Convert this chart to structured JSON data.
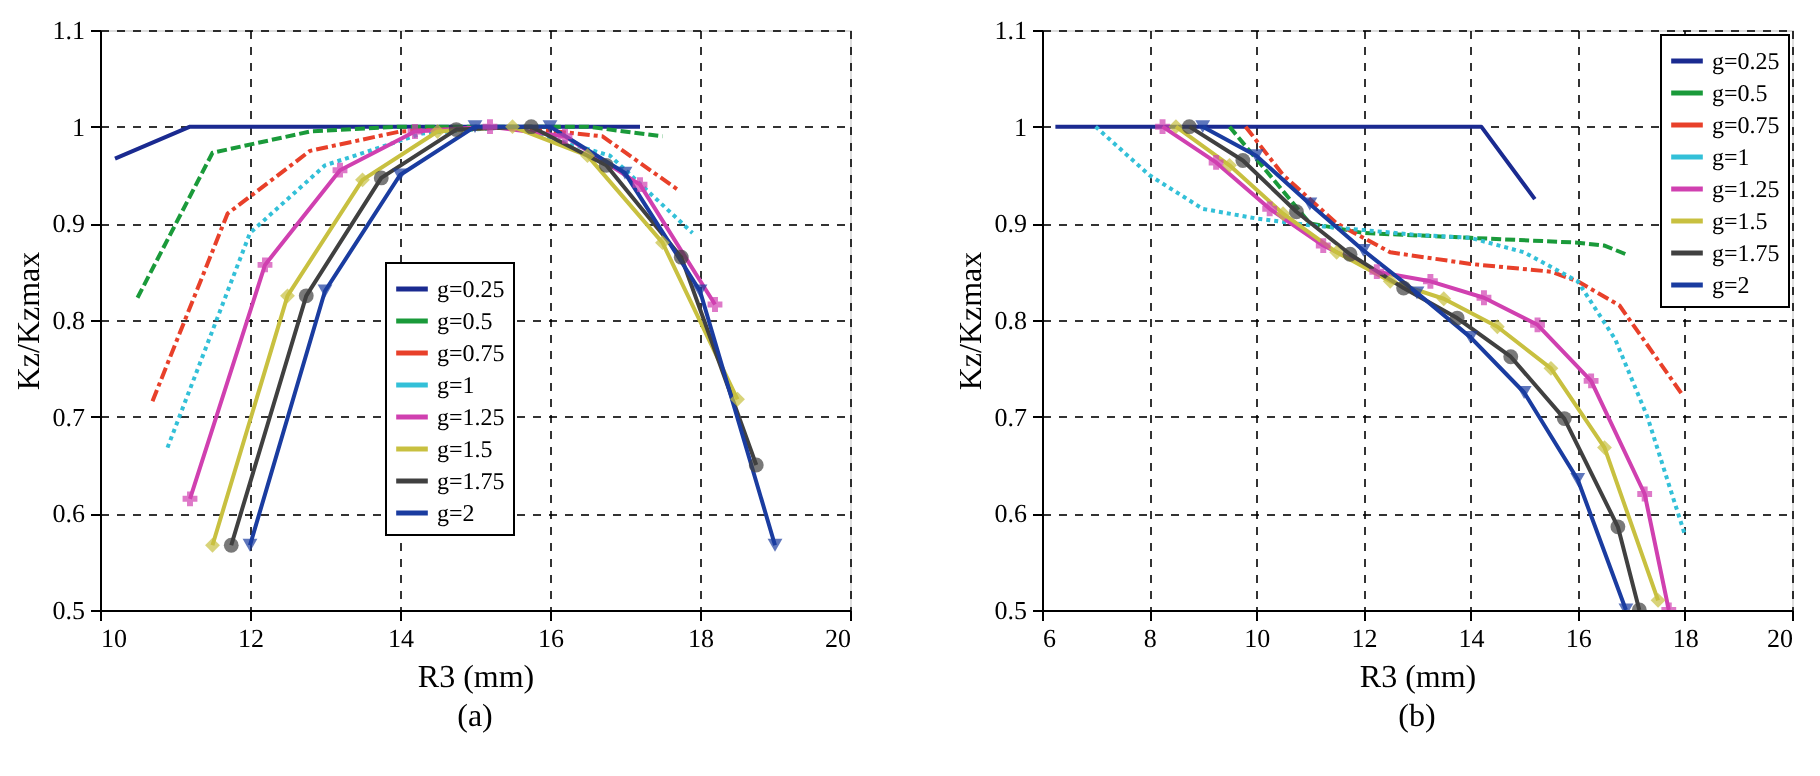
{
  "chart_data": [
    {
      "type": "line",
      "title": "(a)",
      "xlabel": "R3 (mm)",
      "ylabel": "Kz/Kzmax",
      "xlim": [
        10,
        20
      ],
      "ylim": [
        0.5,
        1.1
      ],
      "xticks": [
        10,
        12,
        14,
        16,
        18,
        20
      ],
      "yticks": [
        0.5,
        0.6,
        0.7,
        0.8,
        0.9,
        1,
        1.1
      ],
      "grid": true,
      "legend": "bottom",
      "series": [
        {
          "name": "g=0.25",
          "color": "#1a2a90",
          "line_style": "solid",
          "marker": "none",
          "x": [
            10.2,
            11.2,
            17.2
          ],
          "values": [
            0.967,
            1.0,
            1.0
          ]
        },
        {
          "name": "g=0.5",
          "color": "#1a9a3a",
          "line_style": "dashed",
          "marker": "none",
          "x": [
            10.5,
            11.5,
            12.8,
            14,
            15.5,
            16.5,
            17.5
          ],
          "values": [
            0.823,
            0.973,
            0.995,
            1.0,
            1.0,
            1.0,
            0.99
          ]
        },
        {
          "name": "g=0.75",
          "color": "#e8402a",
          "line_style": "dashdot",
          "marker": "none",
          "x": [
            10.7,
            11.7,
            12.8,
            14,
            15.5,
            16.7,
            17.7
          ],
          "values": [
            0.716,
            0.91,
            0.975,
            0.995,
            1.0,
            0.99,
            0.935
          ]
        },
        {
          "name": "g=1",
          "color": "#33c0d8",
          "line_style": "dotted",
          "marker": "none",
          "x": [
            10.9,
            12,
            13,
            14.3,
            15.5,
            16.8,
            17.9
          ],
          "values": [
            0.668,
            0.89,
            0.96,
            0.993,
            1.0,
            0.97,
            0.89
          ]
        },
        {
          "name": "g=1.25",
          "color": "#d040b0",
          "line_style": "solid",
          "marker": "cross",
          "x": [
            11.2,
            12.2,
            13.2,
            14.2,
            15.2,
            16.2,
            17.2,
            18.2
          ],
          "values": [
            0.615,
            0.857,
            0.955,
            0.995,
            1.0,
            0.99,
            0.94,
            0.816
          ]
        },
        {
          "name": "g=1.5",
          "color": "#c8c040",
          "line_style": "solid",
          "marker": "diamond",
          "x": [
            11.5,
            12.5,
            13.5,
            14.5,
            15.5,
            16.5,
            17.5,
            18.5
          ],
          "values": [
            0.567,
            0.825,
            0.945,
            0.995,
            1.0,
            0.97,
            0.88,
            0.718
          ]
        },
        {
          "name": "g=1.75",
          "color": "#404040",
          "line_style": "solid",
          "marker": "circle",
          "x": [
            11.75,
            12.75,
            13.75,
            14.75,
            15.75,
            16.75,
            17.75,
            18.75
          ],
          "values": [
            0.567,
            0.825,
            0.947,
            0.997,
            1.0,
            0.96,
            0.865,
            0.65
          ]
        },
        {
          "name": "g=2",
          "color": "#1a3ca0",
          "line_style": "solid",
          "marker": "triangle",
          "x": [
            12,
            13,
            14,
            15,
            16,
            17,
            18,
            19
          ],
          "values": [
            0.567,
            0.83,
            0.95,
            1.0,
            1.0,
            0.952,
            0.83,
            0.567
          ]
        }
      ]
    },
    {
      "type": "line",
      "title": "(b)",
      "xlabel": "R3 (mm)",
      "ylabel": "Kz/Kzmax",
      "xlim": [
        6,
        20
      ],
      "ylim": [
        0.5,
        1.1
      ],
      "xticks": [
        6,
        8,
        10,
        12,
        14,
        16,
        18,
        20
      ],
      "yticks": [
        0.5,
        0.6,
        0.7,
        0.8,
        0.9,
        1,
        1.1
      ],
      "grid": true,
      "legend": "top right",
      "series": [
        {
          "name": "g=0.25",
          "color": "#1a2a90",
          "line_style": "solid",
          "marker": "none",
          "x": [
            6.25,
            14.2,
            15.2
          ],
          "values": [
            1.0,
            1.0,
            0.925
          ]
        },
        {
          "name": "g=0.5",
          "color": "#1a9a3a",
          "line_style": "dashed",
          "marker": "none",
          "x": [
            9.5,
            10.1,
            11,
            12,
            14,
            16,
            16.5,
            16.9
          ],
          "values": [
            1.0,
            0.96,
            0.9,
            0.89,
            0.885,
            0.88,
            0.877,
            0.868
          ]
        },
        {
          "name": "g=0.75",
          "color": "#e8402a",
          "line_style": "dashdot",
          "marker": "none",
          "x": [
            9.8,
            10.5,
            11.5,
            12.5,
            14,
            15.5,
            16,
            16.78,
            17.95
          ],
          "values": [
            1.0,
            0.95,
            0.9,
            0.87,
            0.858,
            0.85,
            0.84,
            0.815,
            0.723
          ]
        },
        {
          "name": "g=1",
          "color": "#33c0d8",
          "line_style": "dotted",
          "marker": "none",
          "x": [
            7,
            8,
            9,
            10,
            11,
            12,
            13,
            14,
            15,
            16,
            16.7,
            17.3,
            17.7,
            18
          ],
          "values": [
            1.0,
            0.95,
            0.915,
            0.905,
            0.898,
            0.893,
            0.888,
            0.885,
            0.87,
            0.84,
            0.78,
            0.7,
            0.63,
            0.578
          ]
        },
        {
          "name": "g=1.25",
          "color": "#d040b0",
          "line_style": "solid",
          "marker": "cross",
          "x": [
            8.25,
            9.25,
            10.25,
            11.25,
            12.25,
            13.25,
            14.25,
            15.25,
            16.25,
            17.25,
            17.7
          ],
          "values": [
            1.0,
            0.963,
            0.915,
            0.877,
            0.85,
            0.84,
            0.823,
            0.795,
            0.737,
            0.62,
            0.5
          ]
        },
        {
          "name": "g=1.5",
          "color": "#c8c040",
          "line_style": "solid",
          "marker": "diamond",
          "x": [
            8.5,
            9.5,
            10.5,
            11.5,
            12.5,
            13.5,
            14.5,
            15.5,
            16.5,
            17.5
          ],
          "values": [
            1.0,
            0.96,
            0.91,
            0.87,
            0.84,
            0.822,
            0.793,
            0.75,
            0.668,
            0.51
          ]
        },
        {
          "name": "g=1.75",
          "color": "#404040",
          "line_style": "solid",
          "marker": "circle",
          "x": [
            8.75,
            9.75,
            10.75,
            11.75,
            12.75,
            13.75,
            14.75,
            15.75,
            16.75,
            17.15
          ],
          "values": [
            1.0,
            0.965,
            0.912,
            0.868,
            0.833,
            0.802,
            0.762,
            0.698,
            0.586,
            0.5
          ]
        },
        {
          "name": "g=2",
          "color": "#1a3ca0",
          "line_style": "solid",
          "marker": "triangle",
          "x": [
            9,
            10,
            11,
            12,
            13,
            14,
            15,
            16,
            16.9
          ],
          "values": [
            1.0,
            0.97,
            0.92,
            0.872,
            0.828,
            0.782,
            0.725,
            0.635,
            0.5
          ]
        }
      ]
    }
  ]
}
